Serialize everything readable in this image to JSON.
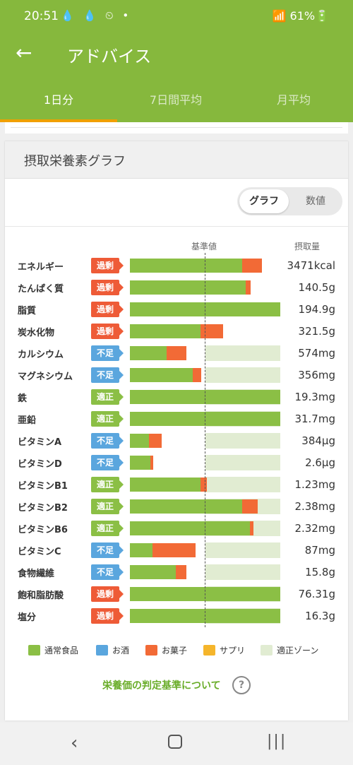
{
  "status_bar": {
    "time": "20:51",
    "icons": "💧 💧 ⏲ •",
    "right": "📶 61%🔋"
  },
  "header": {
    "back_icon": "arrow-left-icon",
    "title": "アドバイス"
  },
  "tabs": [
    {
      "label": "1日分",
      "active": true
    },
    {
      "label": "7日間平均",
      "active": false
    },
    {
      "label": "月平均",
      "active": false
    }
  ],
  "card": {
    "title": "摂取栄養素グラフ"
  },
  "toggle": {
    "graph": "グラフ",
    "numeric": "数値"
  },
  "table_headers": {
    "standard": "基準値",
    "intake": "摂取量"
  },
  "colors": {
    "normal_food": "#8bbf45",
    "alcohol": "#5aa6de",
    "sweets": "#f26a36",
    "supplement": "#f5b52b",
    "ok_zone": "#e1ecd2",
    "status_over": "#ee5b37",
    "status_low": "#5aa6de",
    "status_ok": "#8bbf45"
  },
  "nutrients": [
    {
      "name": "エネルギー",
      "status": "過剰",
      "status_type": "over",
      "value": "3471kcal",
      "normal_pct": 149,
      "sweets_pct": 26,
      "zone": false
    },
    {
      "name": "たんぱく質",
      "status": "過剰",
      "status_type": "over",
      "value": "140.5g",
      "normal_pct": 154,
      "sweets_pct": 7,
      "zone": false
    },
    {
      "name": "脂質",
      "status": "過剰",
      "status_type": "over",
      "value": "194.9g",
      "normal_pct": 200,
      "sweets_pct": 0,
      "zone": false
    },
    {
      "name": "炭水化物",
      "status": "過剰",
      "status_type": "over",
      "value": "321.5g",
      "normal_pct": 94,
      "sweets_pct": 30,
      "zone": false
    },
    {
      "name": "カルシウム",
      "status": "不足",
      "status_type": "low",
      "value": "574mg",
      "normal_pct": 49,
      "sweets_pct": 26,
      "zone": true
    },
    {
      "name": "マグネシウム",
      "status": "不足",
      "status_type": "low",
      "value": "356mg",
      "normal_pct": 84,
      "sweets_pct": 11,
      "zone": true
    },
    {
      "name": "鉄",
      "status": "適正",
      "status_type": "ok",
      "value": "19.3mg",
      "normal_pct": 200,
      "sweets_pct": 0,
      "zone": true
    },
    {
      "name": "亜鉛",
      "status": "適正",
      "status_type": "ok",
      "value": "31.7mg",
      "normal_pct": 200,
      "sweets_pct": 0,
      "zone": true
    },
    {
      "name": "ビタミンA",
      "status": "不足",
      "status_type": "low",
      "value": "384μg",
      "normal_pct": 25,
      "sweets_pct": 17,
      "zone": true
    },
    {
      "name": "ビタミンD",
      "status": "不足",
      "status_type": "low",
      "value": "2.6μg",
      "normal_pct": 27,
      "sweets_pct": 4,
      "zone": true
    },
    {
      "name": "ビタミンB1",
      "status": "適正",
      "status_type": "ok",
      "value": "1.23mg",
      "normal_pct": 94,
      "sweets_pct": 8,
      "zone": true
    },
    {
      "name": "ビタミンB2",
      "status": "適正",
      "status_type": "ok",
      "value": "2.38mg",
      "normal_pct": 149,
      "sweets_pct": 21,
      "zone": true
    },
    {
      "name": "ビタミンB6",
      "status": "適正",
      "status_type": "ok",
      "value": "2.32mg",
      "normal_pct": 160,
      "sweets_pct": 5,
      "zone": true
    },
    {
      "name": "ビタミンC",
      "status": "不足",
      "status_type": "low",
      "value": "87mg",
      "normal_pct": 30,
      "sweets_pct": 57,
      "zone": true
    },
    {
      "name": "食物繊維",
      "status": "不足",
      "status_type": "low",
      "value": "15.8g",
      "normal_pct": 61,
      "sweets_pct": 14,
      "zone": true
    },
    {
      "name": "飽和脂肪酸",
      "status": "過剰",
      "status_type": "over",
      "value": "76.31g",
      "normal_pct": 200,
      "sweets_pct": 0,
      "zone": true
    },
    {
      "name": "塩分",
      "status": "過剰",
      "status_type": "over",
      "value": "16.3g",
      "normal_pct": 200,
      "sweets_pct": 0,
      "zone": true
    }
  ],
  "legend": [
    {
      "label": "通常食品",
      "color": "#8bbf45"
    },
    {
      "label": "お酒",
      "color": "#5aa6de"
    },
    {
      "label": "お菓子",
      "color": "#f26a36"
    },
    {
      "label": "サプリ",
      "color": "#f5b52b"
    },
    {
      "label": "適正ゾーン",
      "color": "#e1ecd2"
    }
  ],
  "footer_link": "栄養価の判定基準について",
  "nav": {
    "back": "‹",
    "recent": "|||"
  }
}
